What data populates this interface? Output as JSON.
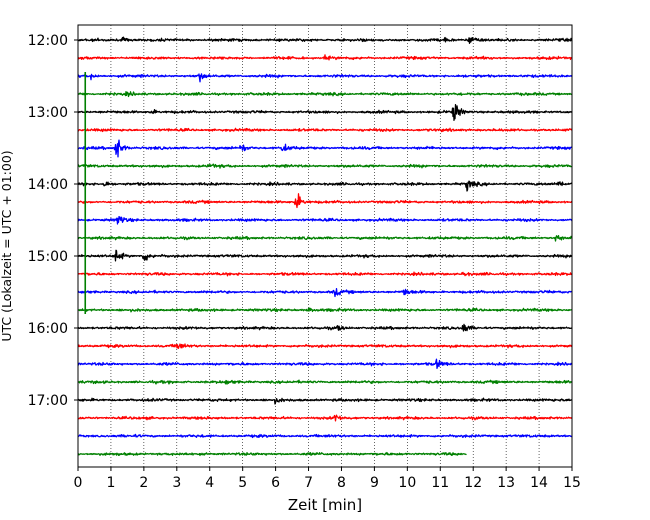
{
  "chart_data": {
    "type": "line",
    "subtype": "helicorder",
    "xlabel": "Zeit  [min]",
    "ylabel": "UTC (Lokalzeit = UTC + 01:00)",
    "xlim": [
      0,
      15
    ],
    "x_ticks": [
      "0",
      "1",
      "2",
      "3",
      "4",
      "5",
      "6",
      "7",
      "8",
      "9",
      "10",
      "11",
      "12",
      "13",
      "14",
      "15"
    ],
    "y_ticks": [
      "12:00",
      "13:00",
      "14:00",
      "15:00",
      "16:00",
      "17:00"
    ],
    "x_grid": "dotted vertical lines at each minute",
    "trace_colors": [
      "#000000",
      "#ff0000",
      "#0000ff",
      "#008000"
    ],
    "trace_count": 24,
    "trace_start_times": [
      "12:00",
      "12:15",
      "12:30",
      "12:45",
      "13:00",
      "13:15",
      "13:30",
      "13:45",
      "14:00",
      "14:15",
      "14:30",
      "14:45",
      "15:00",
      "15:15",
      "15:30",
      "15:45",
      "16:00",
      "16:15",
      "16:30",
      "16:45",
      "17:00",
      "17:15",
      "17:30",
      "17:45"
    ],
    "last_trace_end_minute": 11.8,
    "events": [
      {
        "trace": 0,
        "minute": 1.35,
        "amp": 5
      },
      {
        "trace": 0,
        "minute": 11.9,
        "amp": 11
      },
      {
        "trace": 0,
        "minute": 11.1,
        "amp": 6
      },
      {
        "trace": 1,
        "minute": 7.5,
        "amp": 4
      },
      {
        "trace": 2,
        "minute": 0.4,
        "amp": 5
      },
      {
        "trace": 2,
        "minute": 3.7,
        "amp": 8
      },
      {
        "trace": 3,
        "minute": 1.5,
        "amp": 3
      },
      {
        "trace": 4,
        "minute": 2.2,
        "amp": 5
      },
      {
        "trace": 4,
        "minute": 11.4,
        "amp": 24
      },
      {
        "trace": 6,
        "minute": 4.95,
        "amp": 9
      },
      {
        "trace": 6,
        "minute": 6.2,
        "amp": 9
      },
      {
        "trace": 6,
        "minute": 1.15,
        "amp": 30
      },
      {
        "trace": 7,
        "minute": 4.0,
        "amp": 4
      },
      {
        "trace": 8,
        "minute": 0.8,
        "amp": 7
      },
      {
        "trace": 8,
        "minute": 11.8,
        "amp": 13
      },
      {
        "trace": 8,
        "minute": 14.6,
        "amp": 7
      },
      {
        "trace": 9,
        "minute": 6.6,
        "amp": 22
      },
      {
        "trace": 10,
        "minute": 1.2,
        "amp": 12
      },
      {
        "trace": 11,
        "minute": 14.5,
        "amp": 7
      },
      {
        "trace": 12,
        "minute": 2.0,
        "amp": 12
      },
      {
        "trace": 12,
        "minute": 1.15,
        "amp": 16
      },
      {
        "trace": 13,
        "minute": 11.7,
        "amp": 5
      },
      {
        "trace": 14,
        "minute": 7.8,
        "amp": 8
      },
      {
        "trace": 14,
        "minute": 9.9,
        "amp": 8
      },
      {
        "trace": 15,
        "minute": 7.0,
        "amp": 4
      },
      {
        "trace": 16,
        "minute": 7.9,
        "amp": 5
      },
      {
        "trace": 16,
        "minute": 11.7,
        "amp": 12
      },
      {
        "trace": 17,
        "minute": 3.0,
        "amp": 10
      },
      {
        "trace": 18,
        "minute": 10.9,
        "amp": 9
      },
      {
        "trace": 19,
        "minute": 4.5,
        "amp": 4
      },
      {
        "trace": 20,
        "minute": 6.0,
        "amp": 5
      },
      {
        "trace": 21,
        "minute": 7.8,
        "amp": 7
      }
    ],
    "long_events": [
      {
        "minute": 0.22,
        "from_trace": 2,
        "to_trace": 15,
        "color": "#008000"
      }
    ]
  }
}
